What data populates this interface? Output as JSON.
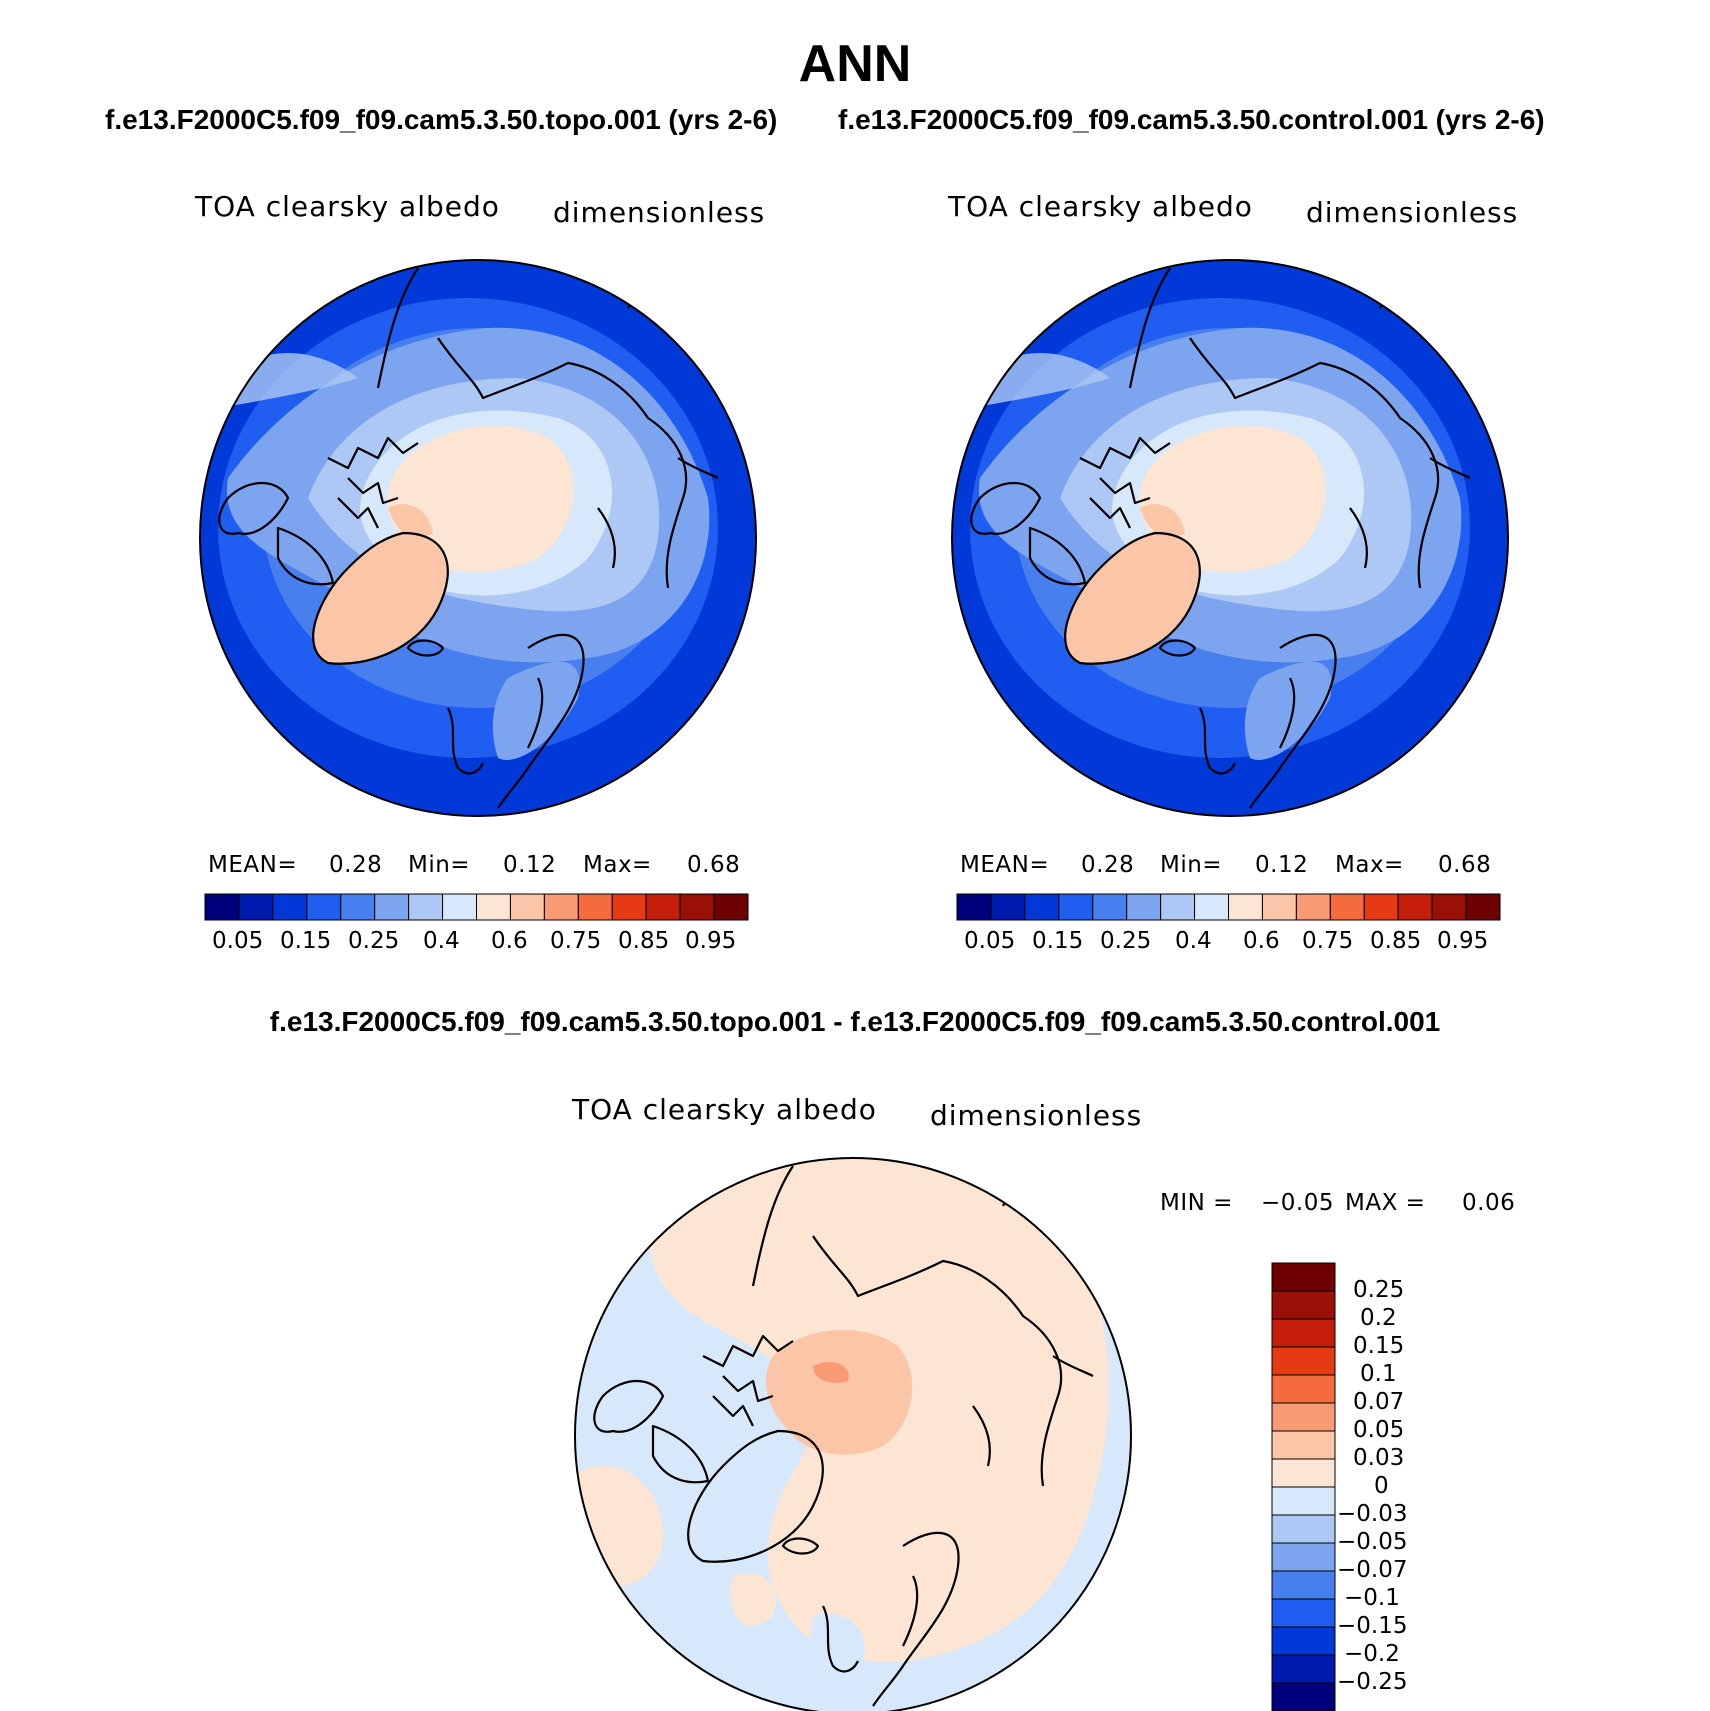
{
  "title": "ANN",
  "panels": {
    "topo": {
      "run_title": "f.e13.F2000C5.f09_f09.cam5.3.50.topo.001 (yrs 2-6)",
      "variable": "TOA clearsky albedo",
      "units": "dimensionless",
      "mean_label": "MEAN=",
      "mean": "0.28",
      "min_label": "Min=",
      "min": "0.12",
      "max_label": "Max=",
      "max": "0.68"
    },
    "control": {
      "run_title": "f.e13.F2000C5.f09_f09.cam5.3.50.control.001 (yrs 2-6)",
      "variable": "TOA clearsky albedo",
      "units": "dimensionless",
      "mean_label": "MEAN=",
      "mean": "0.28",
      "min_label": "Min=",
      "min": "0.12",
      "max_label": "Max=",
      "max": "0.68"
    },
    "diff": {
      "run_title": "f.e13.F2000C5.f09_f09.cam5.3.50.topo.001 - f.e13.F2000C5.f09_f09.cam5.3.50.control.001",
      "variable": "TOA clearsky albedo",
      "units": "dimensionless",
      "min_label": "MIN =",
      "min": "−0.05",
      "max_label": "MAX =",
      "max": "0.06"
    }
  },
  "colorbar_abs": {
    "colors": [
      "#00007d",
      "#001bad",
      "#0039d8",
      "#1f5ef0",
      "#4780ee",
      "#7da4ee",
      "#aec8f5",
      "#d8e8fb",
      "#fde5d3",
      "#fbc5a8",
      "#f89a73",
      "#f46b3e",
      "#e63a14",
      "#c51f0b",
      "#9a0f07",
      "#6e0202"
    ],
    "labels": [
      "0.05",
      "0.15",
      "0.25",
      "0.4",
      "0.6",
      "0.75",
      "0.85",
      "0.95"
    ]
  },
  "colorbar_diff": {
    "colors": [
      "#00007d",
      "#001bad",
      "#0039d8",
      "#1f5ef0",
      "#4780ee",
      "#7da4ee",
      "#aec8f5",
      "#d8e8fb",
      "#fde5d3",
      "#fbc5a8",
      "#f89a73",
      "#f46b3e",
      "#e63a14",
      "#c51f0b",
      "#9a0f07",
      "#6e0202"
    ],
    "labels": [
      "0.25",
      "0.2",
      "0.15",
      "0.1",
      "0.07",
      "0.05",
      "0.03",
      "0",
      "−0.03",
      "−0.05",
      "−0.07",
      "−0.1",
      "−0.15",
      "−0.2",
      "−0.25"
    ]
  }
}
